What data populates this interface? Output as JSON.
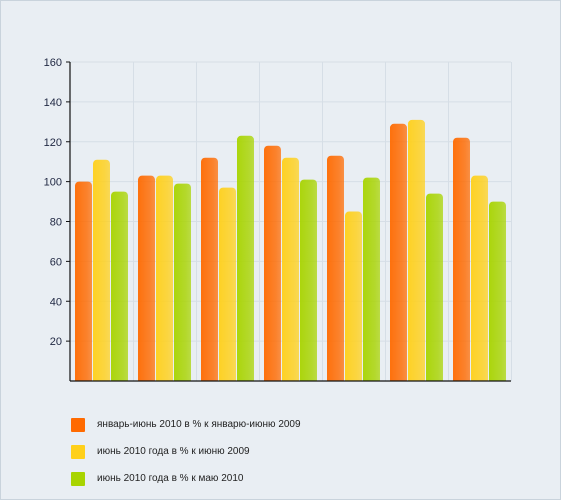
{
  "colors": {
    "background": "#e9eef3",
    "grid": "#d6dee6",
    "axis": "#111111",
    "series": [
      "#ff6a00",
      "#ffd01a",
      "#a8d400"
    ]
  },
  "chart_data": {
    "type": "bar",
    "title": "",
    "xlabel": "",
    "ylabel": "",
    "ylim": [
      0,
      160
    ],
    "yticks": [
      20,
      40,
      60,
      80,
      100,
      120,
      140,
      160
    ],
    "grid": true,
    "legend_position": "bottom-left",
    "categories": [
      "",
      "",
      "",
      "",
      "",
      "",
      ""
    ],
    "series": [
      {
        "name": "январь-июнь 2010 в % к январю-июню 2009",
        "color": "#ff6a00",
        "values": [
          100,
          103,
          112,
          118,
          113,
          129,
          122
        ]
      },
      {
        "name": "июнь 2010 года в % к июню 2009",
        "color": "#ffd01a",
        "values": [
          111,
          103,
          97,
          112,
          85,
          131,
          103
        ]
      },
      {
        "name": "июнь 2010 года в % к  маю 2010",
        "color": "#a8d400",
        "values": [
          95,
          99,
          123,
          101,
          102,
          94,
          90
        ]
      }
    ]
  }
}
